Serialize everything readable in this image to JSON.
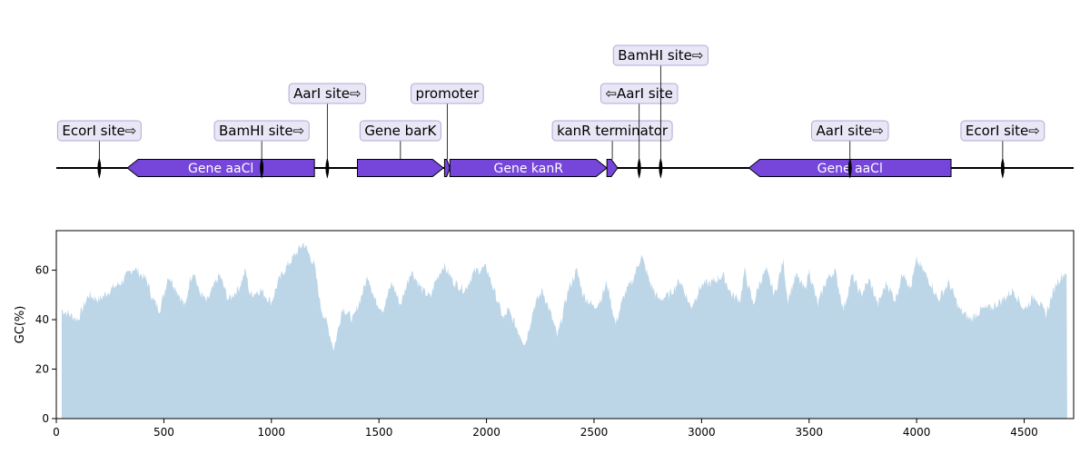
{
  "colors": {
    "gene_fill": "#7646db",
    "label_box_fill": "#e9e6f6",
    "label_box_edge": "#b3a9d6",
    "gc_fill": "#bcd6e8",
    "axis": "#000000"
  },
  "map": {
    "length": 4730,
    "features": [
      {
        "label": "Gene aaCl",
        "start": 330,
        "end": 1200,
        "strand": -1,
        "kind": "gene",
        "label_inside": true
      },
      {
        "label": "Gene barK",
        "start": 1400,
        "end": 1800,
        "strand": 1,
        "kind": "gene",
        "label_inside": false
      },
      {
        "label": "promoter",
        "start": 1805,
        "end": 1830,
        "strand": 1,
        "kind": "small",
        "label_inside": false
      },
      {
        "label": "Gene kanR",
        "start": 1830,
        "end": 2560,
        "strand": 1,
        "kind": "gene",
        "label_inside": true
      },
      {
        "label": "kanR terminator",
        "start": 2560,
        "end": 2610,
        "strand": 1,
        "kind": "small",
        "label_inside": false
      },
      {
        "label": "Gene aaCl",
        "start": 3220,
        "end": 4160,
        "strand": -1,
        "kind": "gene",
        "label_inside": true
      }
    ],
    "sites": [
      {
        "label": "EcorI site⇨",
        "pos": 200
      },
      {
        "label": "BamHI site⇨",
        "pos": 955
      },
      {
        "label": "AarI site⇨",
        "pos": 1260
      },
      {
        "label": "⇦AarI site",
        "pos": 2710
      },
      {
        "label": "BamHI site⇨",
        "pos": 2810
      },
      {
        "label": "AarI site⇨",
        "pos": 3690
      },
      {
        "label": "EcorI site⇨",
        "pos": 4400
      }
    ]
  },
  "chart_data": {
    "type": "area",
    "xlabel": "",
    "ylabel": "GC(%)",
    "xlim": [
      0,
      4730
    ],
    "ylim": [
      0,
      76
    ],
    "xticks": [
      0,
      500,
      1000,
      1500,
      2000,
      2500,
      3000,
      3500,
      4000,
      4500
    ],
    "yticks": [
      0,
      20,
      40,
      60
    ],
    "x_range": [
      25,
      4700
    ],
    "x": [
      25,
      100,
      150,
      200,
      250,
      300,
      330,
      360,
      420,
      450,
      480,
      500,
      520,
      560,
      600,
      620,
      640,
      660,
      700,
      740,
      760,
      800,
      850,
      880,
      900,
      950,
      1000,
      1030,
      1060,
      1100,
      1150,
      1200,
      1230,
      1260,
      1290,
      1310,
      1330,
      1380,
      1420,
      1450,
      1480,
      1520,
      1560,
      1600,
      1650,
      1700,
      1740,
      1760,
      1800,
      1850,
      1900,
      1940,
      1960,
      2000,
      2050,
      2080,
      2100,
      2150,
      2180,
      2220,
      2260,
      2300,
      2330,
      2380,
      2420,
      2450,
      2500,
      2530,
      2560,
      2600,
      2640,
      2680,
      2720,
      2760,
      2800,
      2850,
      2900,
      2950,
      3000,
      3050,
      3100,
      3140,
      3180,
      3200,
      3240,
      3270,
      3300,
      3340,
      3380,
      3400,
      3440,
      3480,
      3500,
      3540,
      3580,
      3620,
      3660,
      3700,
      3740,
      3780,
      3820,
      3860,
      3900,
      3940,
      3970,
      4000,
      4030,
      4070,
      4100,
      4150,
      4200,
      4250,
      4300,
      4350,
      4400,
      4450,
      4500,
      4550,
      4600,
      4650,
      4700
    ],
    "values": [
      44,
      40,
      50,
      48,
      52,
      55,
      58,
      61,
      56,
      48,
      44,
      50,
      58,
      52,
      45,
      56,
      60,
      52,
      47,
      55,
      58,
      48,
      53,
      60,
      50,
      52,
      47,
      55,
      60,
      65,
      71,
      62,
      45,
      38,
      28,
      36,
      45,
      40,
      50,
      58,
      48,
      44,
      55,
      46,
      60,
      52,
      49,
      55,
      62,
      55,
      52,
      59,
      60,
      61,
      48,
      40,
      44,
      35,
      30,
      45,
      52,
      42,
      33,
      52,
      60,
      50,
      45,
      48,
      55,
      38,
      50,
      56,
      66,
      55,
      48,
      50,
      56,
      45,
      54,
      55,
      58,
      50,
      48,
      60,
      46,
      55,
      60,
      50,
      64,
      48,
      58,
      52,
      60,
      46,
      56,
      60,
      44,
      58,
      50,
      56,
      46,
      55,
      48,
      60,
      52,
      64,
      60,
      54,
      48,
      55,
      44,
      40,
      44,
      45,
      48,
      52,
      44,
      50,
      42,
      55,
      60
    ]
  }
}
